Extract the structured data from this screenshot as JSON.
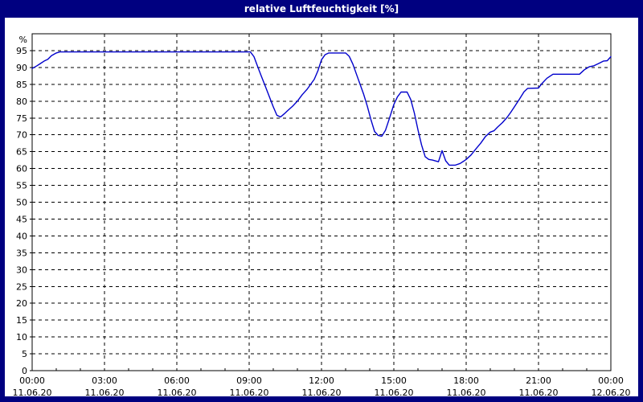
{
  "window": {
    "title": "relative Luftfeuchtigkeit [%]"
  },
  "colors": {
    "background": "#000080",
    "panel": "#ffffff",
    "title_text": "#ffffff",
    "line": "#0000cc",
    "grid": "#000000",
    "axis_text": "#000000"
  },
  "chart_data": {
    "type": "line",
    "title": "relative Luftfeuchtigkeit [%]",
    "ylabel": "%",
    "xlabel": "",
    "ylim": [
      0,
      100
    ],
    "ytick_min": 0,
    "ytick_max": 95,
    "ytick_step": 5,
    "xlim_hours": [
      0,
      24
    ],
    "grid": true,
    "legend": "none",
    "xticks": [
      {
        "hour": 0,
        "time": "00:00",
        "date": "11.06.20"
      },
      {
        "hour": 3,
        "time": "03:00",
        "date": "11.06.20"
      },
      {
        "hour": 6,
        "time": "06:00",
        "date": "11.06.20"
      },
      {
        "hour": 9,
        "time": "09:00",
        "date": "11.06.20"
      },
      {
        "hour": 12,
        "time": "12:00",
        "date": "11.06.20"
      },
      {
        "hour": 15,
        "time": "15:00",
        "date": "11.06.20"
      },
      {
        "hour": 18,
        "time": "18:00",
        "date": "11.06.20"
      },
      {
        "hour": 21,
        "time": "21:00",
        "date": "11.06.20"
      },
      {
        "hour": 24,
        "time": "00:00",
        "date": "12.06.20"
      }
    ],
    "series": [
      {
        "name": "relative Luftfeuchtigkeit",
        "unit": "%",
        "color": "#0000cc",
        "points": [
          [
            0,
            89.7
          ],
          [
            0.2,
            90.5
          ],
          [
            0.35,
            91.2
          ],
          [
            0.5,
            91.9
          ],
          [
            0.65,
            92.4
          ],
          [
            0.8,
            93.5
          ],
          [
            1.0,
            94.3
          ],
          [
            1.15,
            94.6
          ],
          [
            2,
            94.6
          ],
          [
            4,
            94.6
          ],
          [
            6,
            94.6
          ],
          [
            8,
            94.6
          ],
          [
            9.05,
            94.6
          ],
          [
            9.2,
            93.2
          ],
          [
            9.35,
            90.3
          ],
          [
            9.5,
            87.5
          ],
          [
            9.65,
            84.8
          ],
          [
            9.8,
            82.0
          ],
          [
            10,
            78.3
          ],
          [
            10.15,
            75.8
          ],
          [
            10.3,
            75.3
          ],
          [
            10.45,
            76.2
          ],
          [
            10.6,
            77.2
          ],
          [
            10.8,
            78.5
          ],
          [
            11,
            80.0
          ],
          [
            11.2,
            81.9
          ],
          [
            11.4,
            83.5
          ],
          [
            11.55,
            85.0
          ],
          [
            11.7,
            86.5
          ],
          [
            11.85,
            89.0
          ],
          [
            12,
            92.3
          ],
          [
            12.15,
            93.8
          ],
          [
            12.3,
            94.3
          ],
          [
            13,
            94.3
          ],
          [
            13.15,
            93.3
          ],
          [
            13.3,
            91.0
          ],
          [
            13.45,
            88.0
          ],
          [
            13.6,
            85.0
          ],
          [
            13.75,
            82.0
          ],
          [
            13.9,
            78.5
          ],
          [
            14.05,
            74.5
          ],
          [
            14.2,
            71.0
          ],
          [
            14.35,
            69.8
          ],
          [
            14.5,
            69.6
          ],
          [
            14.65,
            71.3
          ],
          [
            14.8,
            74.5
          ],
          [
            15,
            79.0
          ],
          [
            15.15,
            81.3
          ],
          [
            15.3,
            82.7
          ],
          [
            15.55,
            82.7
          ],
          [
            15.7,
            80.5
          ],
          [
            15.85,
            76.5
          ],
          [
            16,
            71.5
          ],
          [
            16.15,
            67.0
          ],
          [
            16.3,
            63.5
          ],
          [
            16.45,
            62.7
          ],
          [
            16.6,
            62.5
          ],
          [
            16.85,
            62.0
          ],
          [
            17,
            65.3
          ],
          [
            17.15,
            62.3
          ],
          [
            17.3,
            61.0
          ],
          [
            17.55,
            61.0
          ],
          [
            17.75,
            61.5
          ],
          [
            17.9,
            62.2
          ],
          [
            18,
            62.7
          ],
          [
            18.2,
            64.0
          ],
          [
            18.4,
            65.8
          ],
          [
            18.6,
            67.5
          ],
          [
            18.8,
            69.5
          ],
          [
            19,
            70.8
          ],
          [
            19.15,
            71.2
          ],
          [
            19.3,
            72.3
          ],
          [
            19.5,
            73.6
          ],
          [
            19.7,
            75.2
          ],
          [
            19.85,
            76.7
          ],
          [
            20,
            78.3
          ],
          [
            20.2,
            80.5
          ],
          [
            20.4,
            82.8
          ],
          [
            20.55,
            83.8
          ],
          [
            21,
            83.9
          ],
          [
            21.15,
            85.3
          ],
          [
            21.35,
            86.8
          ],
          [
            21.6,
            88.0
          ],
          [
            22.7,
            88.0
          ],
          [
            22.9,
            89.3
          ],
          [
            23.1,
            90.2
          ],
          [
            23.3,
            90.5
          ],
          [
            23.5,
            91.2
          ],
          [
            23.7,
            91.9
          ],
          [
            23.85,
            92.0
          ],
          [
            24,
            93.2
          ]
        ]
      }
    ]
  }
}
